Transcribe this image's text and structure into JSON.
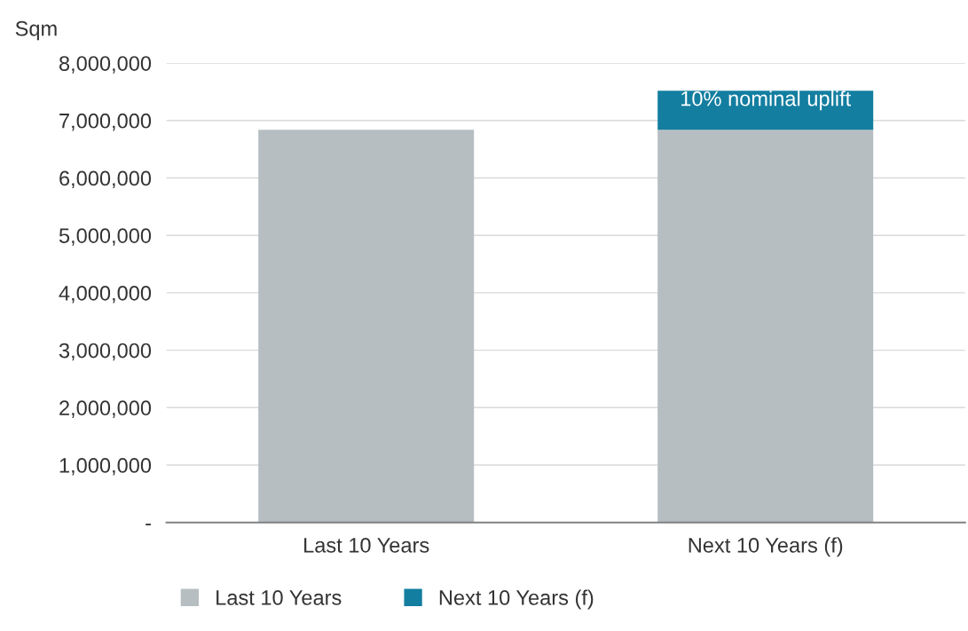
{
  "chart_data": {
    "type": "bar",
    "stacked": true,
    "ylabel": "Sqm",
    "categories": [
      "Last 10 Years",
      "Next 10 Years (f)"
    ],
    "series": [
      {
        "name": "Last 10 Years",
        "color": "#b6bec1",
        "values": [
          6840000,
          6840000
        ]
      },
      {
        "name": "Next 10 Years (f)",
        "color": "#137ea0",
        "values": [
          null,
          680000
        ]
      }
    ],
    "annotations": [
      {
        "text": "10% nominal uplift",
        "x": "Next 10 Years (f)",
        "y": 7520000
      }
    ],
    "ylim": [
      0,
      8000000
    ],
    "yticks": [
      {
        "value": 0,
        "label": "-"
      },
      {
        "value": 1000000,
        "label": "1,000,000"
      },
      {
        "value": 2000000,
        "label": "2,000,000"
      },
      {
        "value": 3000000,
        "label": "3,000,000"
      },
      {
        "value": 4000000,
        "label": "4,000,000"
      },
      {
        "value": 5000000,
        "label": "5,000,000"
      },
      {
        "value": 6000000,
        "label": "6,000,000"
      },
      {
        "value": 7000000,
        "label": "7,000,000"
      },
      {
        "value": 8000000,
        "label": "8,000,000"
      }
    ],
    "grid": "y",
    "legend": "bottom"
  }
}
